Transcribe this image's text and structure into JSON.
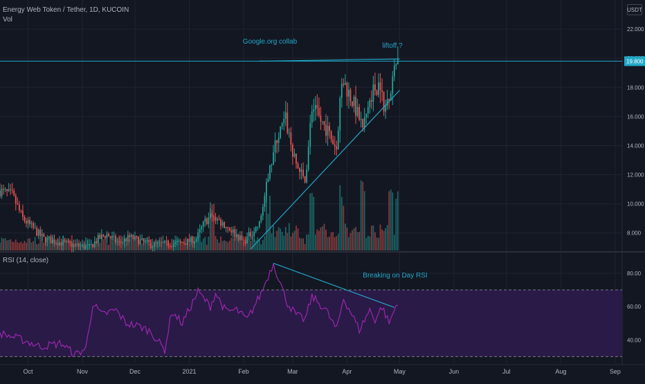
{
  "header": {
    "title": "Energy Web Token / Tether, 1D, KUCOIN",
    "volume_label": "Vol",
    "rsi_label": "RSI (14, close)",
    "currency_button": "USDT"
  },
  "colors": {
    "background": "#131722",
    "up": "#26a69a",
    "down": "#ef5350",
    "trendline": "#22a8c9",
    "rsi_line": "#9c27b0",
    "rsi_band": "#2a1a47",
    "grid": "#1f2431",
    "axis_text": "#b2b5be"
  },
  "annotations": {
    "google": "Google.org collab",
    "liftoff": "liftoff ?",
    "rsi_break": "Breaking on Day RSI"
  },
  "chart_data": [
    {
      "type": "candlestick",
      "title": "Energy Web Token / Tether, 1D, KUCOIN",
      "x_range": [
        "2020-09-15",
        "2021-09-05"
      ],
      "ylim": [
        6.8,
        24
      ],
      "y_ticks": [
        8,
        10,
        12,
        14,
        16,
        18,
        20,
        22
      ],
      "y_tick_labels": [
        "8.000",
        "10.000",
        "12.000",
        "14.000",
        "16.000",
        "18.000",
        "20.000",
        "22.000"
      ],
      "x_tick_labels": [
        "Oct",
        "Nov",
        "Dec",
        "2021",
        "Feb",
        "Mar",
        "Apr",
        "May",
        "Jun",
        "Jul",
        "Aug",
        "Sep"
      ],
      "x_tick_dates": [
        "2020-10-01",
        "2020-11-01",
        "2020-12-01",
        "2021-01-01",
        "2021-02-01",
        "2021-03-01",
        "2021-04-01",
        "2021-05-01",
        "2021-06-01",
        "2021-07-01",
        "2021-08-01",
        "2021-09-01"
      ],
      "price_tag": "19.800",
      "horizontal_line": 19.8,
      "grid": true,
      "close_anchors": [
        [
          "2020-09-15",
          10.9
        ],
        [
          "2020-09-22",
          10.6
        ],
        [
          "2020-09-28",
          9.0
        ],
        [
          "2020-10-10",
          7.6
        ],
        [
          "2020-10-25",
          7.2
        ],
        [
          "2020-11-05",
          7.0
        ],
        [
          "2020-11-10",
          7.6
        ],
        [
          "2020-11-15",
          7.9
        ],
        [
          "2020-11-22",
          7.3
        ],
        [
          "2020-11-28",
          7.7
        ],
        [
          "2020-12-10",
          7.2
        ],
        [
          "2020-12-28",
          7.3
        ],
        [
          "2021-01-05",
          7.6
        ],
        [
          "2021-01-10",
          8.8
        ],
        [
          "2021-01-14",
          9.2
        ],
        [
          "2021-01-25",
          8.2
        ],
        [
          "2021-02-01",
          7.4
        ],
        [
          "2021-02-10",
          8.6
        ],
        [
          "2021-02-15",
          11.8
        ],
        [
          "2021-02-20",
          14.5
        ],
        [
          "2021-02-25",
          15.8
        ],
        [
          "2021-03-02",
          13.0
        ],
        [
          "2021-03-08",
          11.5
        ],
        [
          "2021-03-12",
          16.6
        ],
        [
          "2021-03-20",
          15.2
        ],
        [
          "2021-03-26",
          13.8
        ],
        [
          "2021-03-29",
          18.7
        ],
        [
          "2021-04-05",
          16.8
        ],
        [
          "2021-04-10",
          15.2
        ],
        [
          "2021-04-15",
          17.6
        ],
        [
          "2021-04-20",
          18.4
        ],
        [
          "2021-04-22",
          16.2
        ],
        [
          "2021-04-26",
          18.2
        ],
        [
          "2021-04-30",
          19.8
        ]
      ],
      "volume_spikes": [
        "2021-01-14",
        "2021-02-15",
        "2021-03-12",
        "2021-03-29",
        "2021-04-10",
        "2021-04-26",
        "2021-04-30"
      ],
      "trendlines": [
        {
          "from": [
            "2021-02-10",
            19.8
          ],
          "to": [
            "2021-05-01",
            19.95
          ]
        },
        {
          "from": [
            "2021-02-05",
            6.9
          ],
          "to": [
            "2021-05-01",
            17.8
          ]
        }
      ]
    },
    {
      "type": "line",
      "title": "RSI (14, close)",
      "ylim": [
        26,
        92
      ],
      "y_ticks": [
        40,
        60,
        80
      ],
      "y_tick_labels": [
        "40.00",
        "60.00",
        "80.00"
      ],
      "bands": [
        30,
        70
      ],
      "rsi_anchors": [
        [
          "2020-09-15",
          44
        ],
        [
          "2020-09-28",
          40
        ],
        [
          "2020-10-08",
          36
        ],
        [
          "2020-10-20",
          38
        ],
        [
          "2020-10-28",
          31
        ],
        [
          "2020-11-03",
          35
        ],
        [
          "2020-11-07",
          62
        ],
        [
          "2020-11-12",
          55
        ],
        [
          "2020-11-20",
          58
        ],
        [
          "2020-11-26",
          50
        ],
        [
          "2020-12-04",
          48
        ],
        [
          "2020-12-10",
          45
        ],
        [
          "2020-12-18",
          34
        ],
        [
          "2020-12-22",
          57
        ],
        [
          "2020-12-28",
          50
        ],
        [
          "2021-01-06",
          69
        ],
        [
          "2021-01-13",
          60
        ],
        [
          "2021-01-16",
          68
        ],
        [
          "2021-01-22",
          57
        ],
        [
          "2021-01-28",
          58
        ],
        [
          "2021-02-03",
          52
        ],
        [
          "2021-02-11",
          68
        ],
        [
          "2021-02-18",
          86
        ],
        [
          "2021-02-26",
          62
        ],
        [
          "2021-03-03",
          55
        ],
        [
          "2021-03-08",
          52
        ],
        [
          "2021-03-12",
          66
        ],
        [
          "2021-03-20",
          58
        ],
        [
          "2021-03-26",
          46
        ],
        [
          "2021-03-30",
          65
        ],
        [
          "2021-04-04",
          55
        ],
        [
          "2021-04-08",
          46
        ],
        [
          "2021-04-14",
          58
        ],
        [
          "2021-04-17",
          52
        ],
        [
          "2021-04-21",
          60
        ],
        [
          "2021-04-25",
          50
        ],
        [
          "2021-04-30",
          63
        ]
      ],
      "trendline": {
        "from": [
          "2021-02-18",
          86
        ],
        "to": [
          "2021-04-28",
          59.5
        ]
      }
    }
  ]
}
